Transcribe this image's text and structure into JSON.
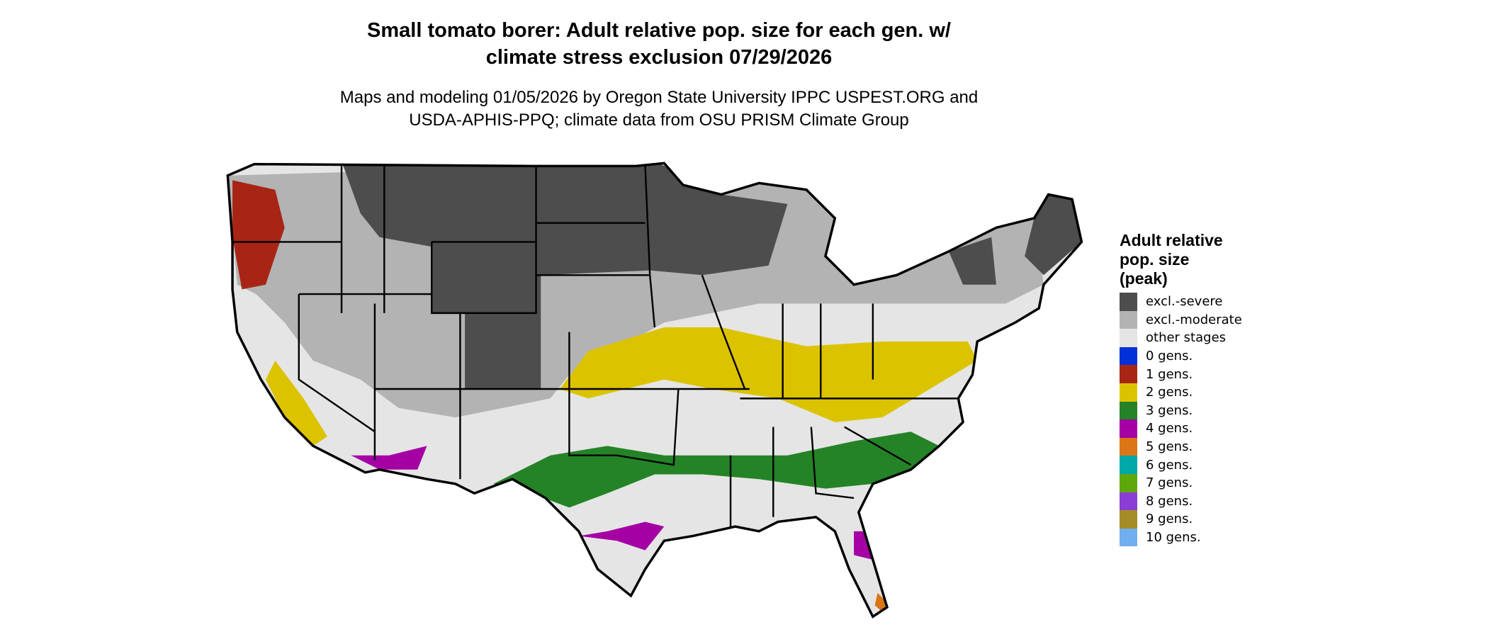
{
  "title_line1": "Small tomato borer: Adult relative pop. size for each gen. w/",
  "title_line2": "climate stress exclusion 07/29/2026",
  "subtitle_line1": "Maps and modeling 01/05/2026 by Oregon State University IPPC USPEST.ORG and",
  "subtitle_line2": "USDA-APHIS-PPQ; climate data from OSU PRISM Climate Group",
  "legend": {
    "title_line1": "Adult relative",
    "title_line2": "pop. size",
    "title_line3": "(peak)",
    "items": [
      {
        "label": "excl.-severe",
        "color": "#4d4d4d"
      },
      {
        "label": "excl.-moderate",
        "color": "#b3b3b3"
      },
      {
        "label": "other stages",
        "color": "#e5e5e5"
      },
      {
        "label": "0 gens.",
        "color": "#0030d8"
      },
      {
        "label": "1 gens.",
        "color": "#a82515"
      },
      {
        "label": "2 gens.",
        "color": "#dcc300"
      },
      {
        "label": "3 gens.",
        "color": "#248326"
      },
      {
        "label": "4 gens.",
        "color": "#a400a4"
      },
      {
        "label": "5 gens.",
        "color": "#dc7515"
      },
      {
        "label": "6 gens.",
        "color": "#00a8a8"
      },
      {
        "label": "7 gens.",
        "color": "#5ea80e"
      },
      {
        "label": "8 gens.",
        "color": "#8a3ed6"
      },
      {
        "label": "9 gens.",
        "color": "#a38c25"
      },
      {
        "label": "10 gens.",
        "color": "#70aef0"
      }
    ]
  }
}
